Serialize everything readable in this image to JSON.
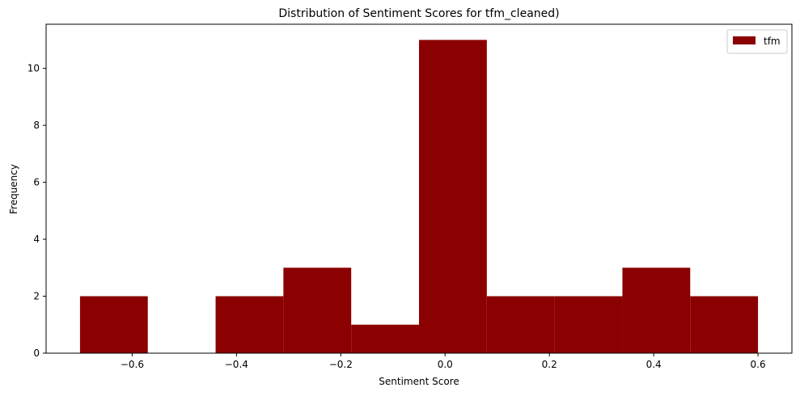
{
  "chart_data": {
    "type": "bar",
    "title": "Distribution of Sentiment Scores for tfm_cleaned)",
    "xlabel": "Sentiment Score",
    "ylabel": "Frequency",
    "bin_edges": [
      -0.7,
      -0.57,
      -0.44,
      -0.31,
      -0.18,
      -0.05,
      0.08,
      0.21,
      0.34,
      0.47,
      0.6
    ],
    "series": [
      {
        "name": "tfm",
        "values": [
          2,
          0,
          2,
          3,
          1,
          11,
          2,
          2,
          3,
          2
        ],
        "color": "#8b0000"
      }
    ],
    "xlim": [
      -0.765,
      0.665
    ],
    "ylim": [
      0,
      11.55
    ],
    "xticks": [
      -0.6,
      -0.4,
      -0.2,
      0.0,
      0.2,
      0.4,
      0.6
    ],
    "xtick_labels": [
      "−0.6",
      "−0.4",
      "−0.2",
      "0.0",
      "0.2",
      "0.4",
      "0.6"
    ],
    "yticks": [
      0,
      2,
      4,
      6,
      8,
      10
    ],
    "ytick_labels": [
      "0",
      "2",
      "4",
      "6",
      "8",
      "10"
    ],
    "grid": false,
    "legend_position": "top-right"
  }
}
